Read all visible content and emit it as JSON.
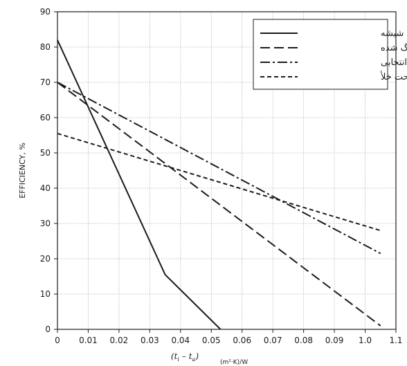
{
  "chart_data": {
    "type": "line",
    "title": "",
    "ylabel": "EFFICIENCY, %",
    "xlabel": {
      "text": "(t_i – t_a)",
      "t1": "(t",
      "s1": "i",
      "mid": " – t",
      "s2": "a",
      "end": ")",
      "unit": "(m²·K)/W"
    },
    "xlim": [
      0,
      1.1
    ],
    "ylim": [
      0,
      90
    ],
    "grid": true,
    "legend_position": "top-right",
    "x_ticks": [
      0,
      0.1,
      0.2,
      0.3,
      0.4,
      0.5,
      0.6,
      0.7,
      0.8,
      0.9,
      1.0,
      1.1
    ],
    "x_tick_labels": [
      "0",
      "0.01",
      "0.02",
      "0.03",
      "0.04",
      "0.05",
      "0.06",
      "0.07",
      "0.08",
      "0.09",
      "1.0",
      "1.1"
    ],
    "y_ticks": [
      0,
      10,
      20,
      30,
      40,
      50,
      60,
      70,
      80,
      90
    ],
    "y_tick_labels": [
      "0",
      "10",
      "20",
      "30",
      "40",
      "50",
      "60",
      "70",
      "80",
      "90"
    ],
    "series": [
      {
        "name": "بدون شیشه",
        "style": "solid",
        "points": [
          [
            0,
            82
          ],
          [
            0.35,
            15.5
          ],
          [
            0.53,
            0
          ]
        ]
      },
      {
        "name": "رنگ شده",
        "style": "dash",
        "points": [
          [
            0,
            70
          ],
          [
            1.05,
            1
          ]
        ]
      },
      {
        "name": "پوشش انتخابی",
        "style": "dashdot",
        "points": [
          [
            0,
            70
          ],
          [
            1.05,
            21.5
          ]
        ]
      },
      {
        "name": "تحت خلأ",
        "style": "shortdash",
        "points": [
          [
            0,
            55.5
          ],
          [
            1.05,
            28
          ]
        ]
      }
    ],
    "colors": {
      "line": "#1a1a1a",
      "grid": "#b5b5b5",
      "frame": "#1a1a1a"
    }
  }
}
